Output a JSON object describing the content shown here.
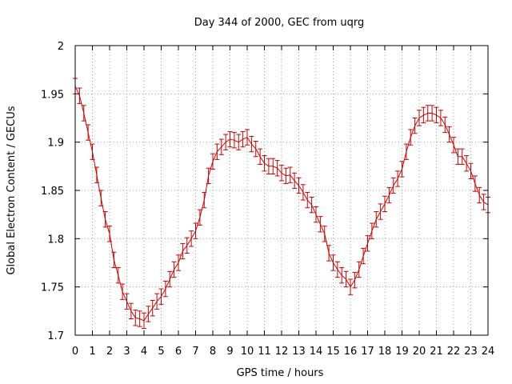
{
  "chart_data": {
    "type": "line",
    "title": "Day 344 of 2000, GEC from uqrg",
    "xlabel": "GPS time / hours",
    "ylabel": "Global Electron Content / GECUs",
    "xlim": [
      0,
      24
    ],
    "ylim": [
      1.7,
      2.0
    ],
    "x_ticks": [
      "0",
      "1",
      "2",
      "3",
      "4",
      "5",
      "6",
      "7",
      "8",
      "9",
      "10",
      "11",
      "12",
      "13",
      "14",
      "15",
      "16",
      "17",
      "18",
      "19",
      "20",
      "21",
      "22",
      "23",
      "24"
    ],
    "y_ticks": [
      "1.7",
      "1.75",
      "1.8",
      "1.85",
      "1.9",
      "1.95",
      "2"
    ],
    "grid": true,
    "series_color": "#cc0000",
    "error": 0.008,
    "series": [
      {
        "x": [
          0.0,
          0.25,
          0.5,
          0.75,
          1.0,
          1.25,
          1.5,
          1.75,
          2.0,
          2.25,
          2.5,
          2.75,
          3.0,
          3.25,
          3.5,
          3.75,
          4.0,
          4.25,
          4.5,
          4.75,
          5.0,
          5.25,
          5.5,
          5.75,
          6.0,
          6.25,
          6.5,
          6.75,
          7.0,
          7.25,
          7.5,
          7.75,
          8.0,
          8.25,
          8.5,
          8.75,
          9.0,
          9.25,
          9.5,
          9.75,
          10.0,
          10.25,
          10.5,
          10.75,
          11.0,
          11.25,
          11.5,
          11.75,
          12.0,
          12.25,
          12.5,
          12.75,
          13.0,
          13.25,
          13.5,
          13.75,
          14.0,
          14.25,
          14.5,
          14.75,
          15.0,
          15.25,
          15.5,
          15.75,
          16.0,
          16.25,
          16.5,
          16.75,
          17.0,
          17.25,
          17.5,
          17.75,
          18.0,
          18.25,
          18.5,
          18.75,
          19.0,
          19.25,
          19.5,
          19.75,
          20.0,
          20.25,
          20.5,
          20.75,
          21.0,
          21.25,
          21.5,
          21.75,
          22.0,
          22.25,
          22.5,
          22.75,
          23.0,
          23.25,
          23.5,
          23.75,
          24.0
        ],
        "y": [
          1.958,
          1.948,
          1.93,
          1.91,
          1.89,
          1.866,
          1.842,
          1.82,
          1.805,
          1.778,
          1.762,
          1.745,
          1.735,
          1.725,
          1.718,
          1.717,
          1.715,
          1.722,
          1.728,
          1.735,
          1.74,
          1.748,
          1.758,
          1.768,
          1.775,
          1.787,
          1.793,
          1.8,
          1.808,
          1.822,
          1.84,
          1.865,
          1.88,
          1.89,
          1.895,
          1.9,
          1.903,
          1.902,
          1.9,
          1.903,
          1.905,
          1.898,
          1.893,
          1.885,
          1.878,
          1.875,
          1.875,
          1.873,
          1.868,
          1.865,
          1.866,
          1.86,
          1.855,
          1.848,
          1.84,
          1.835,
          1.825,
          1.815,
          1.805,
          1.785,
          1.775,
          1.768,
          1.762,
          1.758,
          1.75,
          1.757,
          1.768,
          1.782,
          1.795,
          1.808,
          1.82,
          1.828,
          1.836,
          1.845,
          1.855,
          1.862,
          1.872,
          1.89,
          1.905,
          1.917,
          1.925,
          1.928,
          1.93,
          1.93,
          1.928,
          1.925,
          1.918,
          1.908,
          1.897,
          1.885,
          1.885,
          1.878,
          1.87,
          1.857,
          1.845,
          1.838,
          1.835
        ]
      }
    ]
  }
}
